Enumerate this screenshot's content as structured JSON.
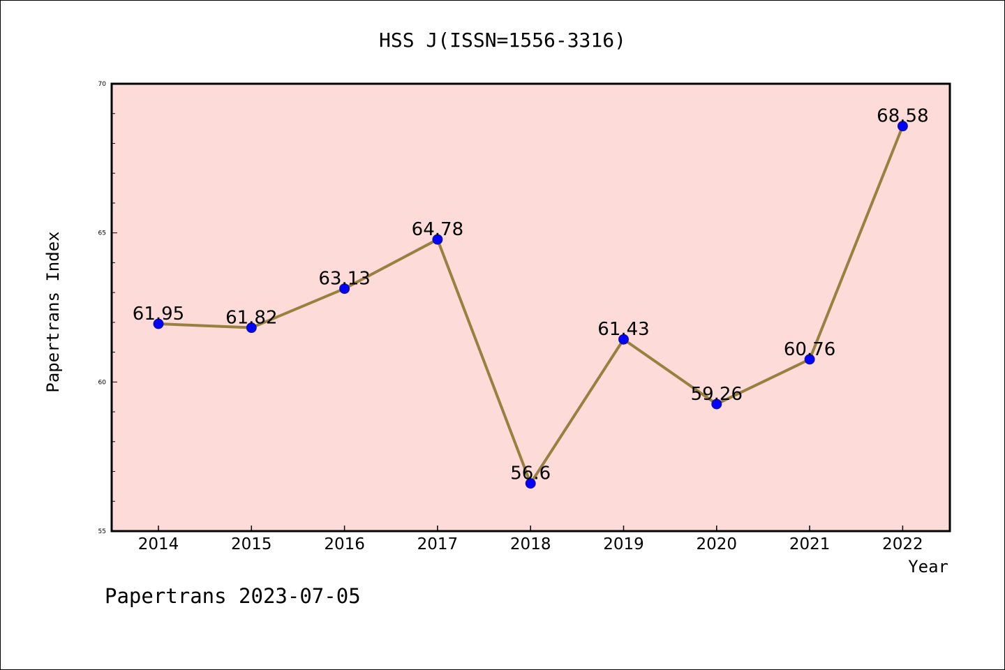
{
  "chart_data": {
    "type": "line",
    "title": "HSS J(ISSN=1556-3316)",
    "xlabel": "Year",
    "ylabel": "Papertrans Index",
    "categories": [
      "2014",
      "2015",
      "2016",
      "2017",
      "2018",
      "2019",
      "2020",
      "2021",
      "2022"
    ],
    "values": [
      61.95,
      61.82,
      63.13,
      64.78,
      56.6,
      61.43,
      59.26,
      60.76,
      68.58
    ],
    "value_labels": [
      "61.95",
      "61.82",
      "63.13",
      "64.78",
      "56.6",
      "61.43",
      "59.26",
      "60.76",
      "68.58"
    ],
    "ylim": [
      55,
      70
    ],
    "yticks": [
      55,
      60,
      65,
      70
    ],
    "yminor_step": 1,
    "grid": false,
    "legend": "none",
    "colors": {
      "plot_background": "#fddbd8",
      "line": "#9a8040",
      "marker": "#0000ff",
      "axis": "#000000"
    }
  },
  "footer": {
    "text": "Papertrans 2023-07-05"
  }
}
